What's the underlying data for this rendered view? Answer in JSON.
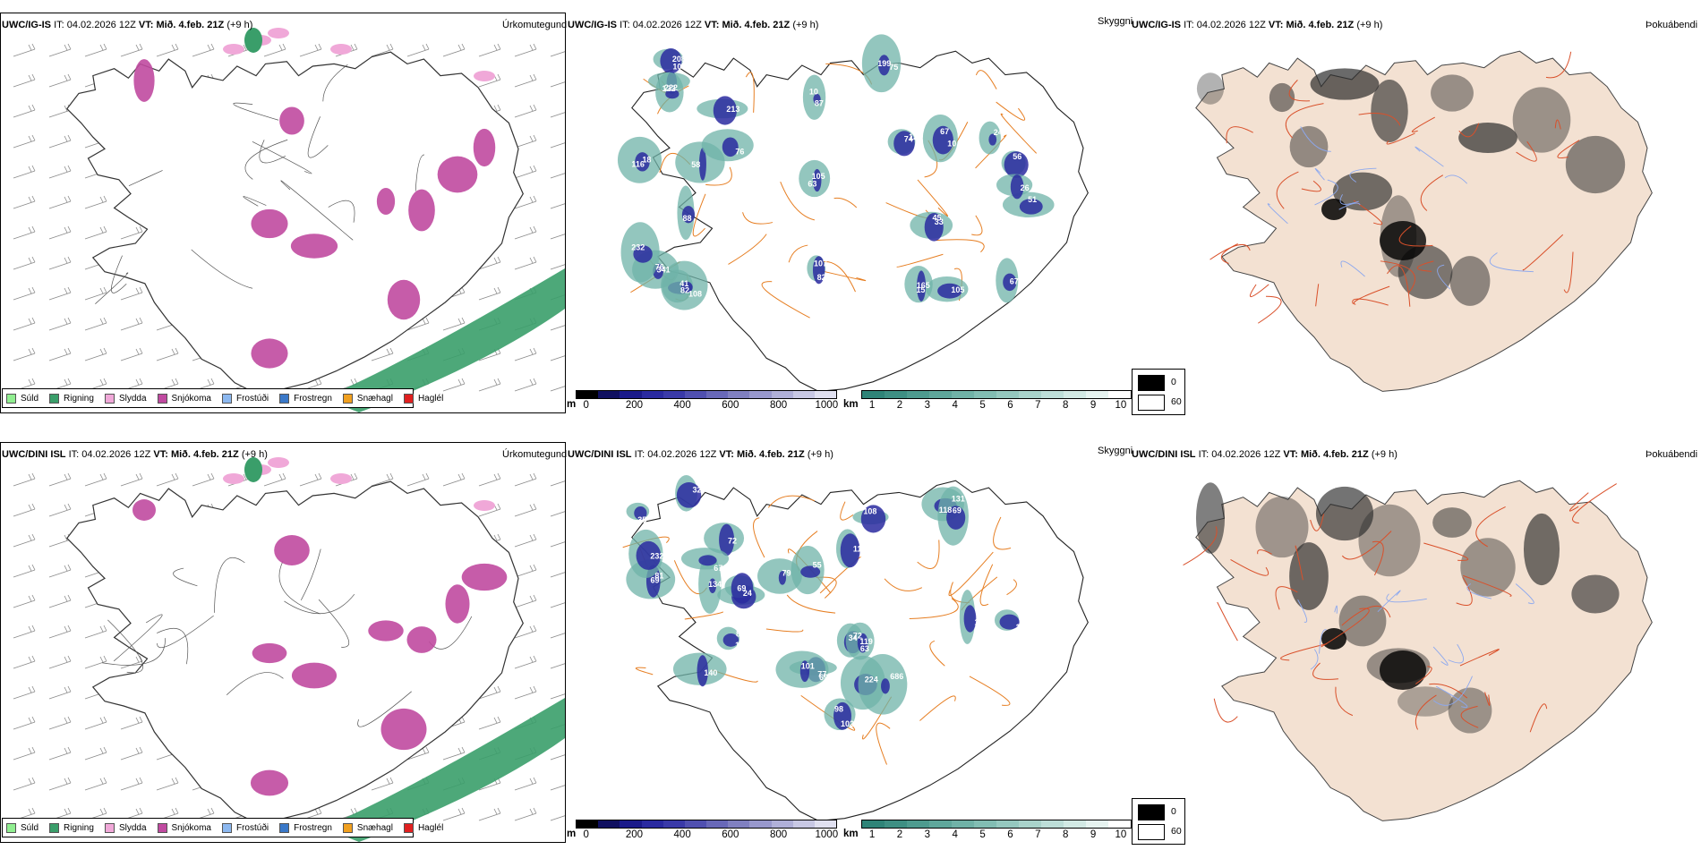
{
  "rows": [
    {
      "header": {
        "model": "UWC/IG-IS",
        "it_label": "IT:",
        "it_value": "04.02.2026 12Z",
        "vt_label": "VT:",
        "vt_value": "Mið. 4.feb. 21Z",
        "offset": "(+9 h)"
      },
      "precip_title": "Úrkomutegund",
      "vis_title": "Skyggni",
      "fog_title": "Þokuábendi",
      "vis_numbers": [
        "75",
        "74",
        "76",
        "105",
        "82",
        "10",
        "82",
        "63",
        "67",
        "33",
        "15",
        "18",
        "56",
        "246",
        "58",
        "222",
        "51",
        "76",
        "88",
        "232",
        "213",
        "122",
        "67",
        "108",
        "26",
        "105",
        "199",
        "126",
        "341",
        "208",
        "41",
        "87",
        "107",
        "105",
        "10",
        "45",
        "165",
        "116"
      ]
    },
    {
      "header": {
        "model": "UWC/DINI ISL",
        "it_label": "IT:",
        "it_value": "04.02.2026 12Z",
        "vt_label": "VT:",
        "vt_value": "Mið. 4.feb. 21Z",
        "offset": "(+9 h)"
      },
      "precip_title": "Úrkomutegund",
      "vis_title": "Skyggni",
      "fog_title": "Þokuábendi",
      "vis_numbers": [
        "81",
        "98",
        "34",
        "77",
        "63",
        "82",
        "131",
        "112",
        "199",
        "232",
        "101",
        "79",
        "134",
        "72",
        "69",
        "69",
        "105",
        "140",
        "24",
        "224",
        "55",
        "67",
        "32",
        "686",
        "35",
        "108",
        "69",
        "102",
        "72",
        "69",
        "119",
        "15",
        "118"
      ]
    }
  ],
  "precip_legend": [
    {
      "label": "Súld",
      "color": "#90ee90"
    },
    {
      "label": "Rigning",
      "color": "#3a9e6a"
    },
    {
      "label": "Slydda",
      "color": "#f0a8d8"
    },
    {
      "label": "Snjókoma",
      "color": "#c04aa0"
    },
    {
      "label": "Frostúði",
      "color": "#8cb8f0"
    },
    {
      "label": "Frostregn",
      "color": "#3a78c8"
    },
    {
      "label": "Snæhagl",
      "color": "#f0a020"
    },
    {
      "label": "Haglél",
      "color": "#e02020"
    }
  ],
  "ceiling_bar": {
    "unit": "m",
    "ticks": [
      "0",
      "200",
      "400",
      "600",
      "800",
      "1000"
    ],
    "colors": [
      "#000000",
      "#101060",
      "#1a1a8a",
      "#2a2aa0",
      "#3a3aa8",
      "#5050b0",
      "#6868b8",
      "#8080c0",
      "#9898cc",
      "#b0b0d8",
      "#c8c8e4",
      "#e0e0f0"
    ]
  },
  "visibility_bar": {
    "unit": "km",
    "ticks": [
      "1",
      "2",
      "3",
      "4",
      "5",
      "6",
      "7",
      "8",
      "9",
      "10"
    ],
    "colors": [
      "#2f8478",
      "#3e8f83",
      "#4e9b8f",
      "#5fa79b",
      "#70b2a7",
      "#82bdb3",
      "#95c8bf",
      "#a9d3cb",
      "#bdded8",
      "#d2e9e4",
      "#e6f3f0",
      "#ffffff"
    ]
  },
  "fog_legend": [
    {
      "label": "0",
      "color": "#000000"
    },
    {
      "label": "60",
      "color": "#ffffff"
    }
  ],
  "colors": {
    "land_fog": "#f3e1d2",
    "roads": "#e67e22",
    "roads_red": "#d9502a",
    "rivers": "#8ca8ef",
    "coast": "#333333",
    "snow": "#c04aa0",
    "rain": "#3a9e6a",
    "sleet": "#f0a8d8"
  }
}
